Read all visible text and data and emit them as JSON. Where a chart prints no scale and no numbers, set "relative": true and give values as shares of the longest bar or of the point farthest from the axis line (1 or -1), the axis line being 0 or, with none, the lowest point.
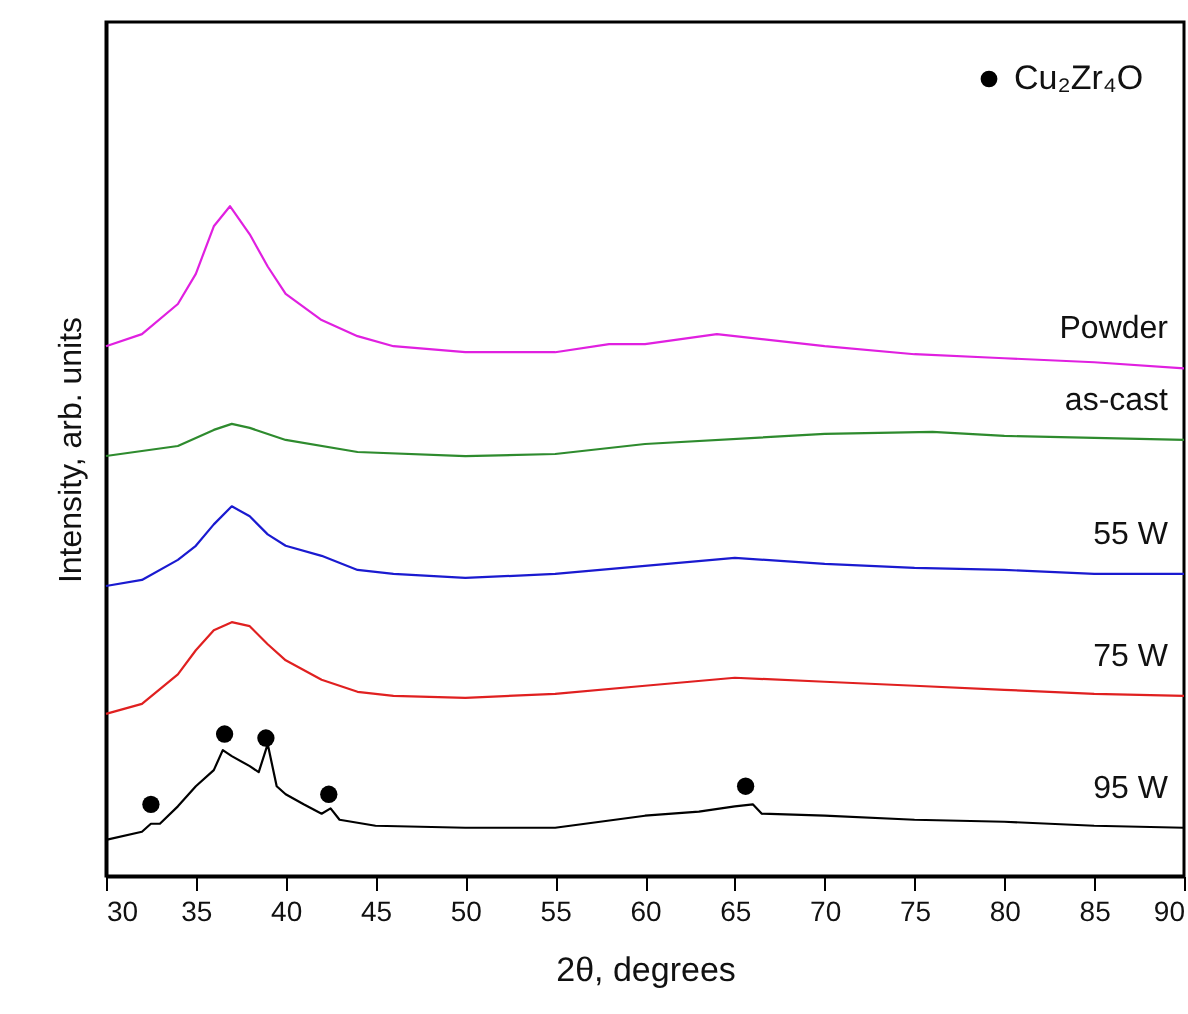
{
  "chart_data": {
    "type": "line",
    "relative": true,
    "xlabel": "2θ, degrees",
    "ylabel": "Intensity, arb. units",
    "xlim": [
      30,
      90
    ],
    "xticks": [
      30,
      35,
      40,
      45,
      50,
      55,
      60,
      65,
      70,
      75,
      80,
      85,
      90
    ],
    "grid": false,
    "legend": "top right",
    "tick_labels": "x",
    "series": [
      {
        "name": "Powder",
        "color": "#e020e0",
        "x": [
          30,
          32,
          34,
          35,
          36,
          36.9,
          38,
          39,
          40,
          42,
          44,
          46,
          50,
          55,
          58,
          60,
          64,
          70,
          75,
          80,
          85,
          90
        ],
        "values": [
          0.791,
          0.809,
          0.854,
          0.899,
          0.97,
          1,
          0.958,
          0.91,
          0.869,
          0.83,
          0.806,
          0.791,
          0.782,
          0.782,
          0.794,
          0.794,
          0.809,
          0.791,
          0.779,
          0.773,
          0.767,
          0.758
        ]
      },
      {
        "name": "as-cast",
        "color": "#2e8b2e",
        "x": [
          30,
          34,
          36,
          37,
          38,
          40,
          44,
          50,
          55,
          60,
          70,
          76,
          80,
          90
        ],
        "values": [
          0.627,
          0.642,
          0.666,
          0.675,
          0.669,
          0.651,
          0.633,
          0.627,
          0.63,
          0.645,
          0.66,
          0.663,
          0.657,
          0.651
        ]
      },
      {
        "name": "55 W",
        "color": "#1a1ad0",
        "x": [
          30,
          32,
          34,
          35,
          36,
          37,
          38,
          39,
          40,
          42,
          44,
          46,
          50,
          55,
          60,
          65,
          70,
          75,
          80,
          85,
          90
        ],
        "values": [
          0.433,
          0.442,
          0.472,
          0.493,
          0.525,
          0.552,
          0.537,
          0.51,
          0.493,
          0.478,
          0.457,
          0.451,
          0.445,
          0.451,
          0.463,
          0.475,
          0.466,
          0.46,
          0.457,
          0.451,
          0.451
        ]
      },
      {
        "name": "75 W",
        "color": "#e02020",
        "x": [
          30,
          32,
          34,
          35,
          36,
          37,
          38,
          39,
          40,
          42,
          44,
          46,
          50,
          55,
          60,
          65,
          70,
          75,
          80,
          85,
          90
        ],
        "values": [
          0.242,
          0.257,
          0.301,
          0.337,
          0.367,
          0.379,
          0.373,
          0.346,
          0.322,
          0.293,
          0.275,
          0.269,
          0.266,
          0.272,
          0.284,
          0.296,
          0.29,
          0.284,
          0.278,
          0.272,
          0.269
        ]
      },
      {
        "name": "95 W",
        "color": "#000000",
        "x": [
          30,
          32,
          32.5,
          33,
          34,
          35,
          36,
          36.5,
          37,
          38,
          38.5,
          39,
          39.5,
          40,
          41,
          42,
          42.5,
          43,
          45,
          50,
          55,
          60,
          63,
          65,
          66,
          66.5,
          70,
          75,
          80,
          85,
          90
        ],
        "values": [
          0.054,
          0.066,
          0.078,
          0.078,
          0.104,
          0.134,
          0.158,
          0.188,
          0.179,
          0.164,
          0.155,
          0.197,
          0.134,
          0.122,
          0.107,
          0.093,
          0.101,
          0.084,
          0.075,
          0.072,
          0.072,
          0.09,
          0.096,
          0.104,
          0.107,
          0.093,
          0.09,
          0.084,
          0.081,
          0.075,
          0.072
        ]
      },
      {
        "name": "Cu₂Zr₄O",
        "type": "scatter",
        "marker": "circle",
        "color": "#000000",
        "x": [
          32.5,
          36.6,
          38.9,
          42.4,
          65.6
        ],
        "values": [
          0.107,
          0.212,
          0.206,
          0.122,
          0.134
        ]
      }
    ]
  }
}
